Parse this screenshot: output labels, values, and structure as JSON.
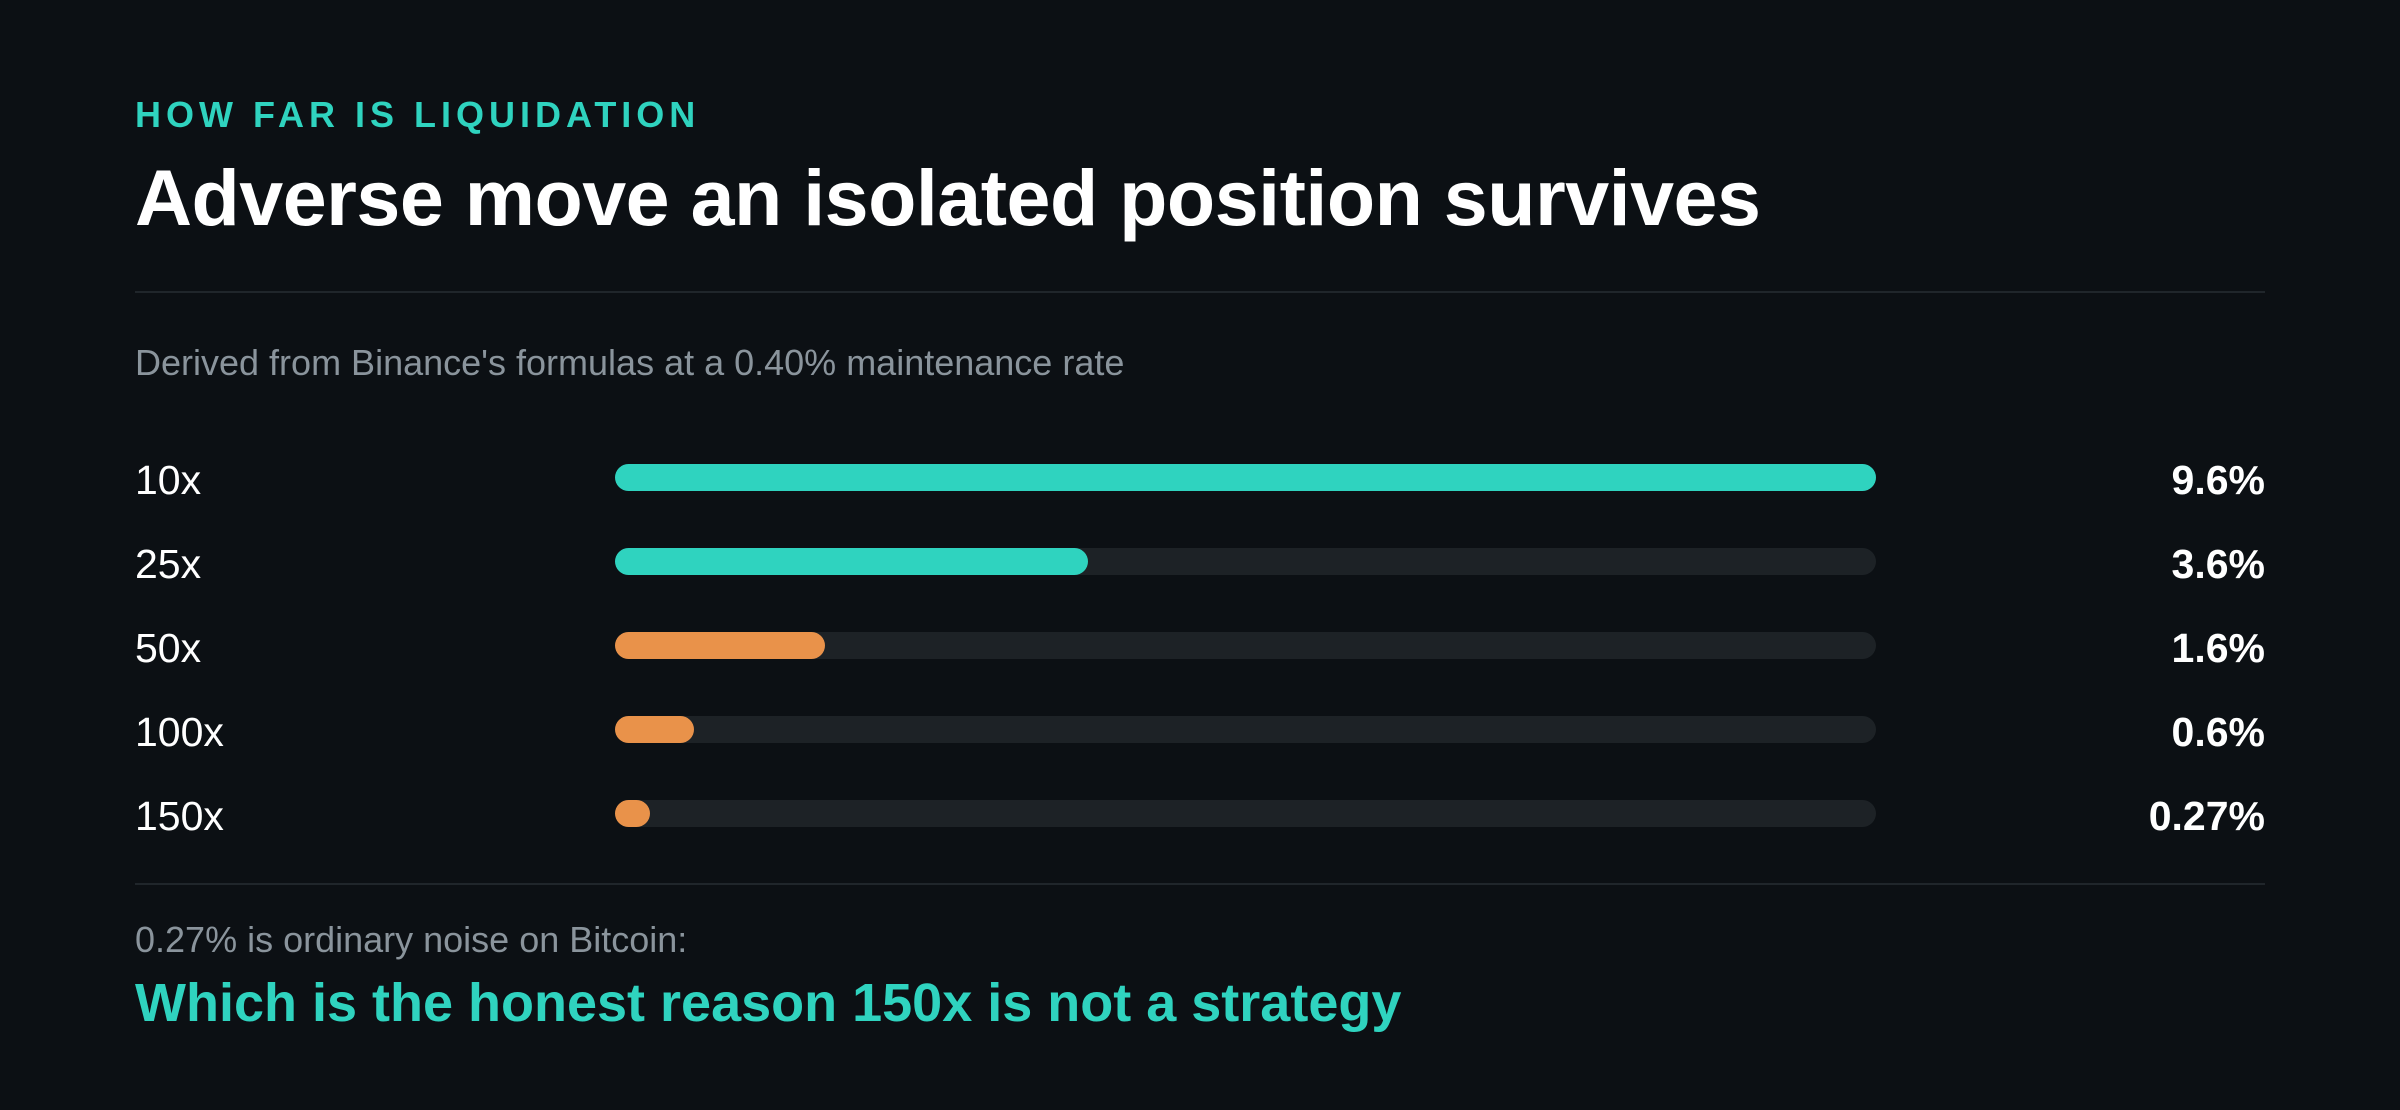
{
  "header": {
    "eyebrow": "HOW FAR IS LIQUIDATION",
    "title": "Adverse move an isolated position survives"
  },
  "subtitle": "Derived from Binance's formulas at a 0.40% maintenance rate",
  "chart_data": {
    "type": "bar",
    "orientation": "horizontal",
    "categories": [
      "10x",
      "25x",
      "50x",
      "100x",
      "150x"
    ],
    "values": [
      9.6,
      3.6,
      1.6,
      0.6,
      0.27
    ],
    "value_labels": [
      "9.6%",
      "3.6%",
      "1.6%",
      "0.6%",
      "0.27%"
    ],
    "unit": "%",
    "xlim": [
      0,
      9.6
    ],
    "bar_colors": [
      "#2fd3bf",
      "#2fd3bf",
      "#e9924a",
      "#e9924a",
      "#e9924a"
    ],
    "track_color": "#1d2226",
    "grid": false,
    "legend": "none"
  },
  "footer": {
    "note": "0.27% is ordinary noise on Bitcoin:",
    "conclusion": "Which is the honest reason 150x is not a strategy"
  },
  "colors": {
    "background": "#0c1014",
    "accent": "#2fd3bf",
    "warning": "#e9924a",
    "muted_text": "#8a949c",
    "divider": "#20262b"
  }
}
